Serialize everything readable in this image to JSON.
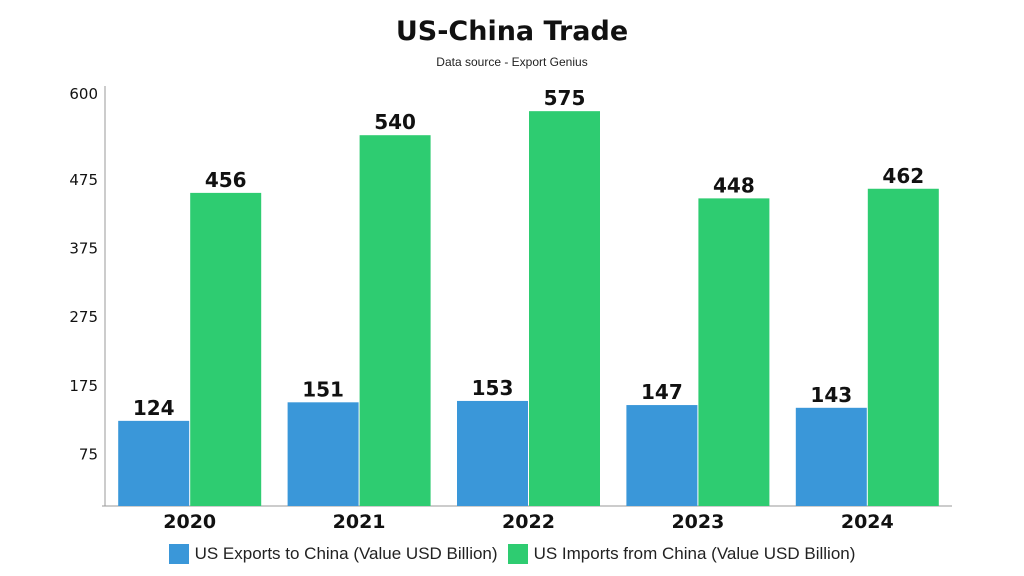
{
  "title": "US-China Trade",
  "subtitle": "Data source - Export Genius",
  "chart_data": {
    "type": "bar",
    "title": "US-China Trade",
    "subtitle": "Data source - Export Genius",
    "xlabel": "",
    "ylabel": "",
    "categories": [
      "2020",
      "2021",
      "2022",
      "2023",
      "2024"
    ],
    "series": [
      {
        "name": "US Exports to China (Value USD Billion)",
        "color": "#3a97d9",
        "values": [
          124,
          151,
          153,
          147,
          143
        ]
      },
      {
        "name": "US Imports from China (Value USD Billion)",
        "color": "#2ecc71",
        "values": [
          456,
          540,
          575,
          448,
          462
        ]
      }
    ],
    "yticks": [
      75,
      175,
      275,
      375,
      475,
      600
    ],
    "ylim": [
      0,
      600
    ],
    "grid": false,
    "legend_position": "bottom"
  }
}
